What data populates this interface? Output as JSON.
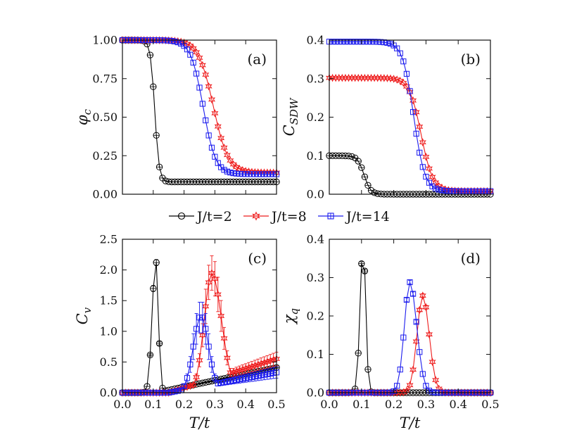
{
  "legend": [
    {
      "label": "J/t=2",
      "color": "#000000",
      "marker": "circle"
    },
    {
      "label": "J/t=8",
      "color": "#ee1c1c",
      "marker": "star"
    },
    {
      "label": "J/t=14",
      "color": "#1c1cee",
      "marker": "square"
    }
  ],
  "chart_data": [
    {
      "id": "a",
      "type": "line",
      "panel_label": "(a)",
      "ylabel": "φ_c",
      "xlabel": "",
      "xlim": [
        0,
        0.5
      ],
      "ylim": [
        0,
        1
      ],
      "yticks": [
        "0.00",
        "0.25",
        "0.50",
        "0.75",
        "1.00"
      ],
      "ytick_values": [
        0,
        0.25,
        0.5,
        0.75,
        1
      ],
      "xticks": [],
      "xtick_values": [
        0,
        0.1,
        0.2,
        0.3,
        0.4,
        0.5
      ],
      "series": [
        {
          "name": "J/t=2",
          "gen": "sig",
          "params": {
            "base": 0.08,
            "amp": 0.92,
            "tc": 0.105,
            "w": 0.007,
            "slope": 0
          }
        },
        {
          "name": "J/t=8",
          "gen": "sig",
          "params": {
            "base": 0.14,
            "amp": 0.86,
            "tc": 0.295,
            "w": 0.024,
            "slope": 0
          }
        },
        {
          "name": "J/t=14",
          "gen": "sig",
          "params": {
            "base": 0.13,
            "amp": 0.87,
            "tc": 0.262,
            "w": 0.02,
            "slope": 0
          }
        }
      ]
    },
    {
      "id": "b",
      "type": "line",
      "panel_label": "(b)",
      "ylabel": "C_SDW",
      "xlabel": "",
      "xlim": [
        0,
        0.5
      ],
      "ylim": [
        0,
        0.4
      ],
      "yticks": [
        "0.0",
        "0.1",
        "0.2",
        "0.3",
        "0.4"
      ],
      "ytick_values": [
        0,
        0.1,
        0.2,
        0.3,
        0.4
      ],
      "xticks": [],
      "xtick_values": [
        0,
        0.1,
        0.2,
        0.3,
        0.4,
        0.5
      ],
      "series": [
        {
          "name": "J/t=2",
          "gen": "sig",
          "params": {
            "base": 0.0,
            "amp": 0.1,
            "tc": 0.108,
            "w": 0.01,
            "slope": 0
          }
        },
        {
          "name": "J/t=8",
          "gen": "sig",
          "params": {
            "base": 0.008,
            "amp": 0.294,
            "tc": 0.285,
            "w": 0.018,
            "slope": 0
          }
        },
        {
          "name": "J/t=14",
          "gen": "sig",
          "params": {
            "base": 0.008,
            "amp": 0.388,
            "tc": 0.262,
            "w": 0.017,
            "slope": 0
          }
        }
      ]
    },
    {
      "id": "c",
      "type": "line",
      "panel_label": "(c)",
      "ylabel": "C_v",
      "xlabel": "T/t",
      "xlim": [
        0,
        0.5
      ],
      "ylim": [
        0,
        2.5
      ],
      "yticks": [
        "0.0",
        "0.5",
        "1.0",
        "1.5",
        "2.0",
        "2.5"
      ],
      "ytick_values": [
        0,
        0.5,
        1,
        1.5,
        2,
        2.5
      ],
      "xticks": [
        "0.0",
        "0.1",
        "0.2",
        "0.3",
        "0.4",
        "0.5"
      ],
      "xtick_values": [
        0,
        0.1,
        0.2,
        0.3,
        0.4,
        0.5
      ],
      "series": [
        {
          "name": "J/t=2",
          "gen": "peak",
          "params": {
            "tc": 0.108,
            "w1": 0.016,
            "w2": 0.012,
            "amp": 2.18,
            "tail": 0.41,
            "tailStart": 0.11,
            "err": 0.05
          }
        },
        {
          "name": "J/t=8",
          "gen": "peak",
          "params": {
            "tc": 0.29,
            "w1": 0.035,
            "w2": 0.045,
            "amp": 1.95,
            "tail": 0.55,
            "tailStart": 0.15,
            "err": 0.28
          }
        },
        {
          "name": "J/t=14",
          "gen": "peak",
          "params": {
            "tc": 0.255,
            "w1": 0.035,
            "w2": 0.035,
            "amp": 1.25,
            "tail": 0.33,
            "tailStart": 0.15,
            "err": 0.25
          }
        }
      ]
    },
    {
      "id": "d",
      "type": "line",
      "panel_label": "(d)",
      "ylabel": "χ_q",
      "xlabel": "T/t",
      "xlim": [
        0,
        0.5
      ],
      "ylim": [
        0,
        0.4
      ],
      "yticks": [
        "0.0",
        "0.1",
        "0.2",
        "0.3",
        "0.4"
      ],
      "ytick_values": [
        0,
        0.1,
        0.2,
        0.3,
        0.4
      ],
      "xticks": [
        "0.0",
        "0.1",
        "0.2",
        "0.3",
        "0.4",
        "0.5"
      ],
      "xtick_values": [
        0,
        0.1,
        0.2,
        0.3,
        0.4,
        0.5
      ],
      "series": [
        {
          "name": "J/t=2",
          "gen": "peak",
          "params": {
            "tc": 0.105,
            "w1": 0.013,
            "w2": 0.011,
            "amp": 0.39,
            "tail": 0.0,
            "tailStart": 0.1,
            "err": 0.005
          }
        },
        {
          "name": "J/t=8",
          "gen": "peak",
          "params": {
            "tc": 0.29,
            "w1": 0.025,
            "w2": 0.028,
            "amp": 0.253,
            "tail": 0.0,
            "tailStart": 0.1,
            "err": 0.005
          }
        },
        {
          "name": "J/t=14",
          "gen": "peak",
          "params": {
            "tc": 0.25,
            "w1": 0.024,
            "w2": 0.03,
            "amp": 0.288,
            "tail": 0.0,
            "tailStart": 0.1,
            "err": 0.005
          }
        }
      ]
    }
  ]
}
